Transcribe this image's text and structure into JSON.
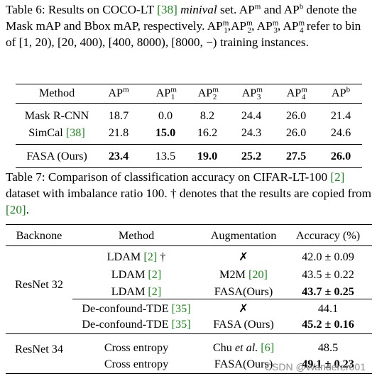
{
  "table6": {
    "caption_label": "Table 6:",
    "caption_text_1": " Results on COCO-LT ",
    "cite_38": "[38]",
    "caption_minival": " minival",
    "caption_text_2": " set. ",
    "caption_text_3": " and ",
    "caption_text_4": " denote the Mask mAP and Bbox mAP, respectively. ",
    "caption_text_5": " refer to bin of [1, 20), [20, 400), [400, 8000), [8000, −) training instances.",
    "ap": "AP",
    "sup_m": "m",
    "sup_b": "b",
    "sub_1": "1",
    "sub_2": "2",
    "sub_3": "3",
    "sub_4": "4",
    "comma": ",",
    "headers": [
      "Method",
      "AP^m",
      "AP1^m",
      "AP2^m",
      "AP3^m",
      "AP4^m",
      "AP^b"
    ],
    "rows": [
      {
        "method": "Mask R-CNN",
        "cite": "",
        "values": [
          "18.7",
          "0.0",
          "8.2",
          "24.4",
          "26.0",
          "21.4"
        ],
        "bold": [
          false,
          false,
          false,
          false,
          false,
          false
        ]
      },
      {
        "method": "SimCal ",
        "cite": "[38]",
        "values": [
          "21.8",
          "15.0",
          "16.2",
          "24.3",
          "26.0",
          "24.6"
        ],
        "bold": [
          false,
          true,
          false,
          false,
          false,
          false
        ]
      },
      {
        "method": "FASA (Ours)",
        "cite": "",
        "values": [
          "23.4",
          "13.5",
          "19.0",
          "25.2",
          "27.5",
          "26.0"
        ],
        "bold": [
          true,
          false,
          true,
          true,
          true,
          true
        ]
      }
    ]
  },
  "table7": {
    "caption_label": "Table 7:",
    "caption_text_1": " Comparison of classification accuracy on CIFAR-LT-100 ",
    "cite_2": "[2]",
    "caption_text_2": " dataset with imbalance ratio 100. † denotes that the results are copied from ",
    "cite_20": "[20]",
    "caption_text_3": ".",
    "headers": [
      "Backnone",
      "Method",
      "Augmentation",
      "Accuracy (%)"
    ],
    "groups": [
      {
        "backbone": "ResNet 32",
        "rows": [
          {
            "method": "LDAM ",
            "cite": "[2]",
            "suffix": " †",
            "aug": "✗",
            "aug_cite": "",
            "acc": "42.0 ± 0.09",
            "bold": false
          },
          {
            "method": "LDAM ",
            "cite": "[2]",
            "suffix": "",
            "aug": "M2M ",
            "aug_cite": "[20]",
            "acc": "43.5 ± 0.22",
            "bold": false
          },
          {
            "method": "LDAM ",
            "cite": "[2]",
            "suffix": "",
            "aug": "FASA(Ours)",
            "aug_cite": "",
            "acc": "43.7 ± 0.25",
            "bold": true
          },
          {
            "method": "De-confound-TDE ",
            "cite": "[35]",
            "suffix": "",
            "aug": "✗",
            "aug_cite": "",
            "acc": "44.1",
            "bold": false
          },
          {
            "method": "De-confound-TDE ",
            "cite": "[35]",
            "suffix": "",
            "aug": "FASA (Ours)",
            "aug_cite": "",
            "acc": "45.2 ± 0.16",
            "bold": true
          }
        ]
      },
      {
        "backbone": "ResNet 34",
        "rows": [
          {
            "method": "Cross entropy",
            "cite": "",
            "suffix": "",
            "aug": "Chu ",
            "aug_italic": "et al.",
            "aug_cite": " [6]",
            "acc": "48.5",
            "bold": false
          },
          {
            "method": "Cross entropy",
            "cite": "",
            "suffix": "",
            "aug": "FASA(Ours)",
            "aug_cite": "",
            "acc": "49.1 ± 0.23",
            "bold": true
          }
        ]
      }
    ]
  },
  "watermark": "CSDN @Wanderer001"
}
